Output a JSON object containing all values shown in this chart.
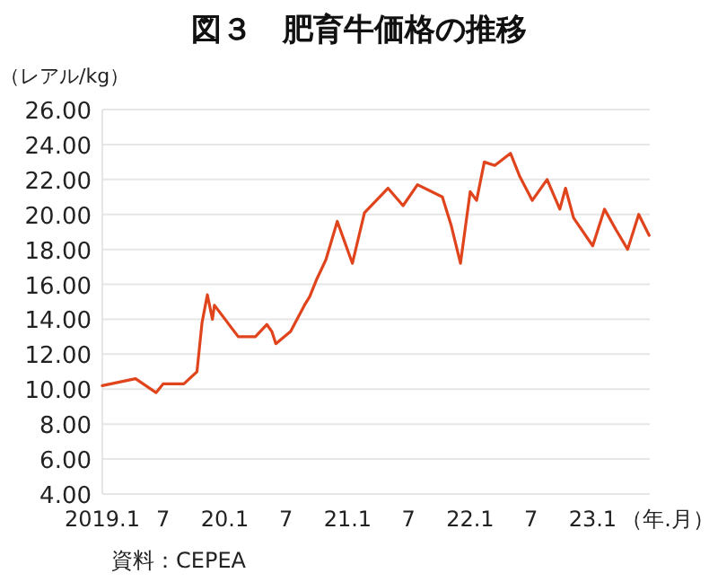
{
  "chart_data": {
    "type": "line",
    "title": "図３　肥育牛価格の推移",
    "ylabel": "（レアル/kg）",
    "xlabel": "（年.月）",
    "annotations": [
      "資料：CEPEA"
    ],
    "x": [
      "2019-01-01",
      "2019-04-10",
      "2019-06-10",
      "2019-07-01",
      "2019-09-01",
      "2019-10-10",
      "2019-10-25",
      "2019-11-10",
      "2019-11-25",
      "2019-12-01",
      "2020-02-10",
      "2020-04-01",
      "2020-05-05",
      "2020-05-20",
      "2020-06-01",
      "2020-07-15",
      "2020-08-25",
      "2020-09-10",
      "2020-10-01",
      "2020-10-28",
      "2020-12-01",
      "2021-01-15",
      "2021-02-20",
      "2021-05-01",
      "2021-06-15",
      "2021-07-28",
      "2021-10-10",
      "2021-11-05",
      "2021-12-03",
      "2022-01-01",
      "2022-01-20",
      "2022-02-12",
      "2022-03-15",
      "2022-05-01",
      "2022-05-28",
      "2022-07-05",
      "2022-08-18",
      "2022-09-25",
      "2022-10-12",
      "2022-11-05",
      "2023-01-01",
      "2023-02-05",
      "2023-03-12",
      "2023-04-15",
      "2023-05-18",
      "2023-06-18"
    ],
    "series": [
      {
        "color": "#e0441c",
        "values": [
          10.2,
          10.6,
          9.8,
          10.3,
          10.3,
          11.0,
          13.8,
          15.4,
          14.0,
          14.8,
          13.0,
          13.0,
          13.7,
          13.3,
          12.6,
          13.3,
          14.8,
          15.3,
          16.3,
          17.4,
          19.6,
          17.2,
          20.1,
          21.5,
          20.5,
          21.7,
          21.0,
          19.4,
          17.2,
          21.3,
          20.8,
          23.0,
          22.8,
          23.5,
          22.2,
          20.8,
          22.0,
          20.3,
          21.5,
          19.8,
          18.2,
          20.3,
          19.1,
          18.0,
          20.0,
          18.8
        ]
      }
    ],
    "xlim": [
      "2019-01-01",
      "2023-06-20"
    ],
    "xticks": [
      {
        "value": "2019-01-01",
        "label": "2019.1"
      },
      {
        "value": "2019-07-01",
        "label": "7"
      },
      {
        "value": "2020-01-01",
        "label": "20.1"
      },
      {
        "value": "2020-07-01",
        "label": "7"
      },
      {
        "value": "2021-01-01",
        "label": "21.1"
      },
      {
        "value": "2021-07-01",
        "label": "7"
      },
      {
        "value": "2022-01-01",
        "label": "22.1"
      },
      {
        "value": "2022-07-01",
        "label": "7"
      },
      {
        "value": "2023-01-01",
        "label": "23.1"
      }
    ],
    "ylim": [
      4,
      26
    ],
    "yticks": [
      {
        "value": 4,
        "label": "4.00"
      },
      {
        "value": 6,
        "label": "6.00"
      },
      {
        "value": 8,
        "label": "8.00"
      },
      {
        "value": 10,
        "label": "10.00"
      },
      {
        "value": 12,
        "label": "12.00"
      },
      {
        "value": 14,
        "label": "14.00"
      },
      {
        "value": 16,
        "label": "16.00"
      },
      {
        "value": 18,
        "label": "18.00"
      },
      {
        "value": 20,
        "label": "20.00"
      },
      {
        "value": 22,
        "label": "22.00"
      },
      {
        "value": 24,
        "label": "24.00"
      },
      {
        "value": 26,
        "label": "26.00"
      }
    ],
    "grid": "y",
    "marker": "none",
    "line_style": "solid"
  }
}
